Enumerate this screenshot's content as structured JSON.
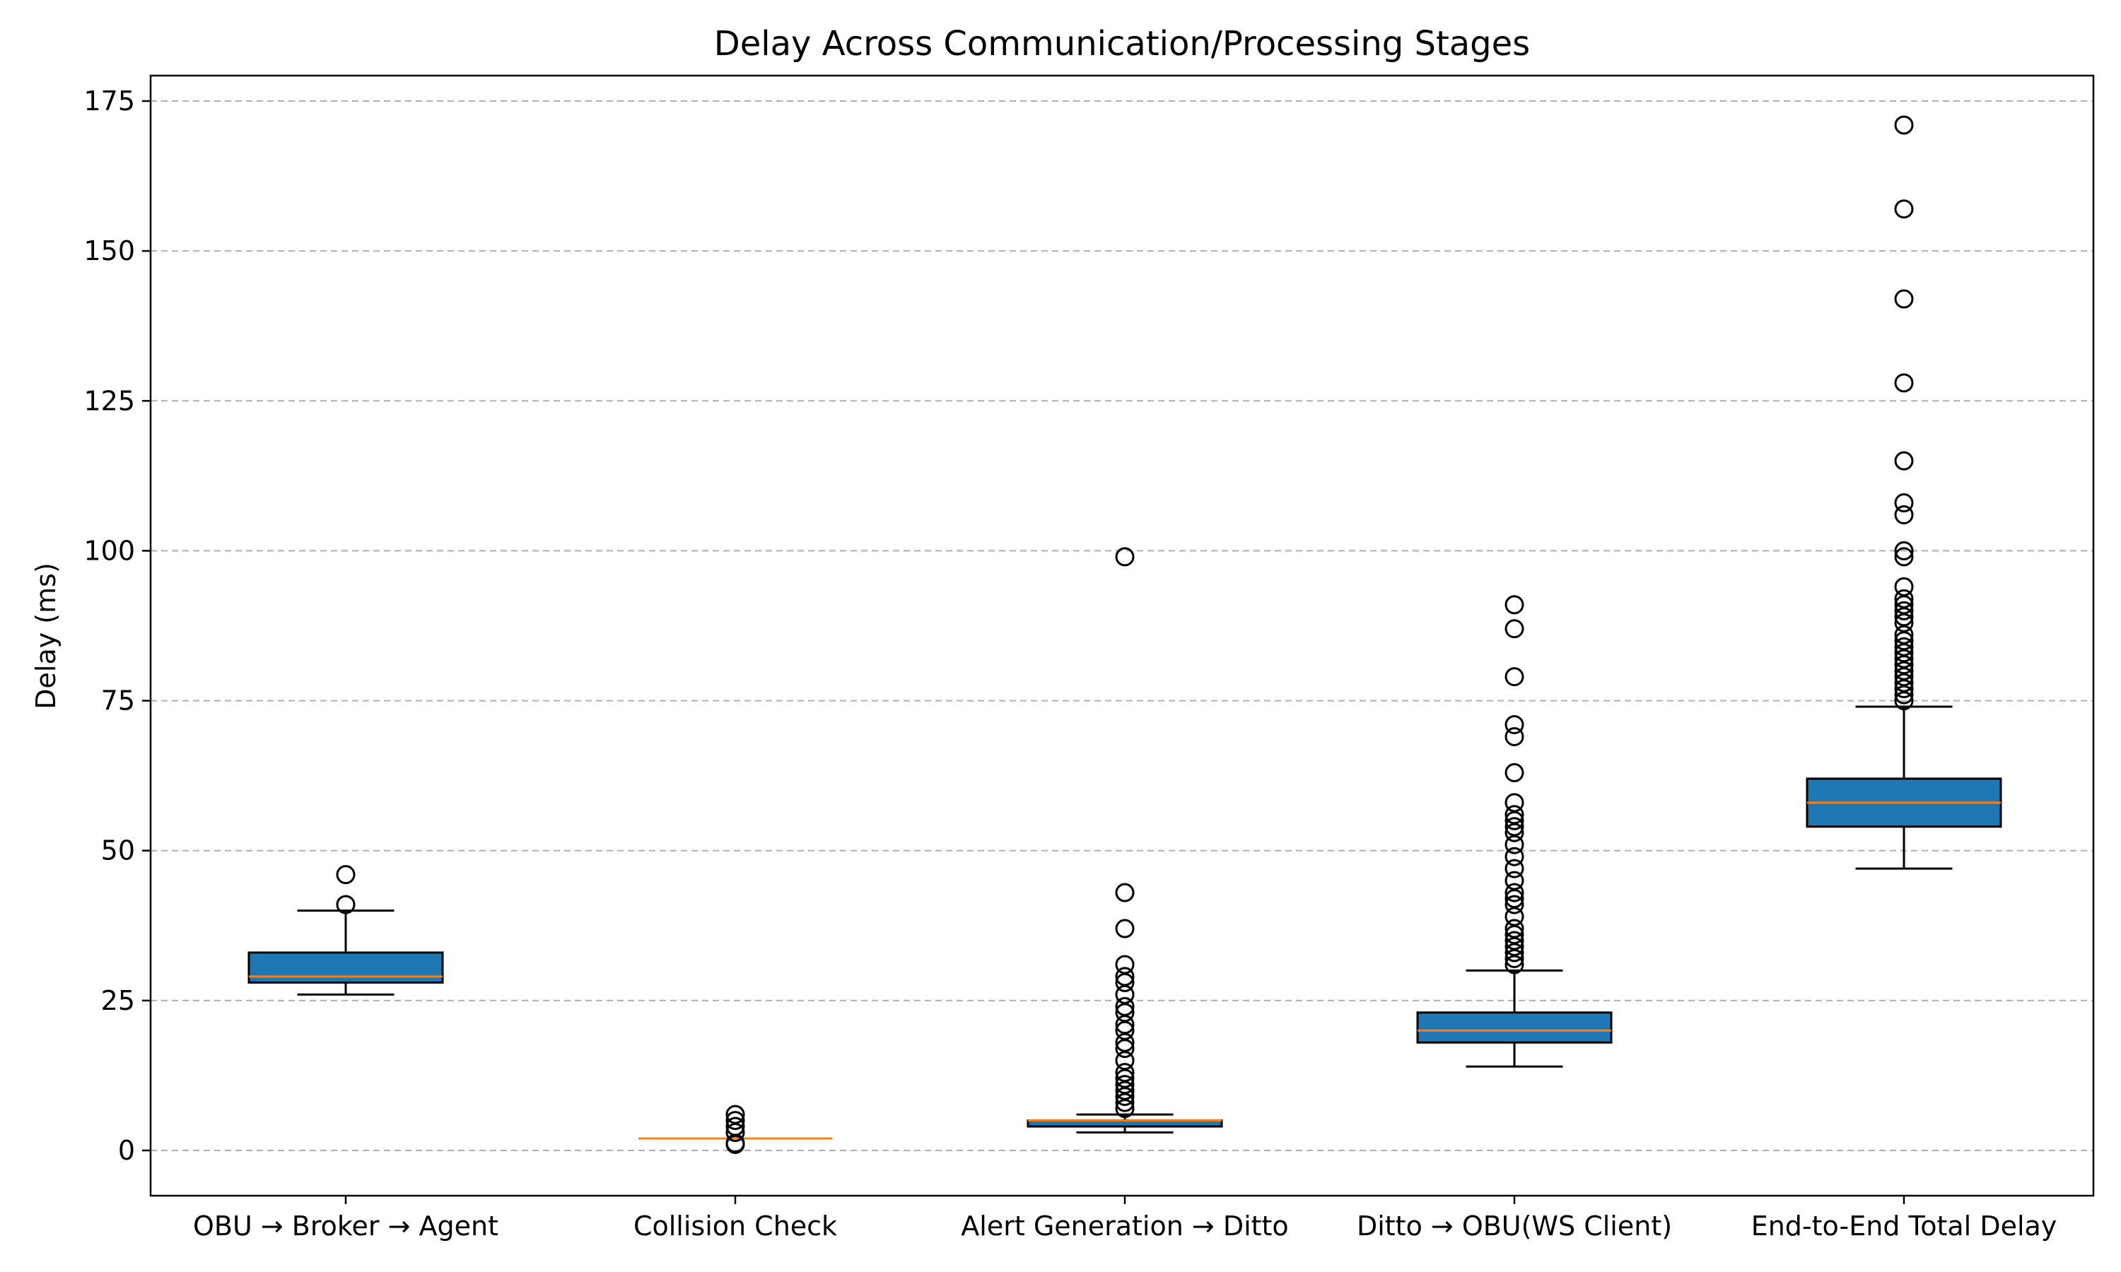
{
  "chart_data": {
    "type": "box",
    "title": "Delay Across Communication/Processing Stages",
    "xlabel": "",
    "ylabel": "Delay (ms)",
    "ylim": [
      -7.5,
      180
    ],
    "yticks": [
      0,
      25,
      50,
      75,
      100,
      125,
      150,
      175
    ],
    "grid": "y-dashed",
    "colors": {
      "box": "#1f77b4",
      "median": "#ff7f0e",
      "line": "#000000",
      "grid": "#b0b0b0"
    },
    "categories": [
      "OBU → Broker → Agent",
      "Collision Check",
      "Alert Generation → Ditto",
      "Ditto → OBU(WS Client)",
      "End-to-End Total Delay"
    ],
    "boxes": [
      {
        "whisker_low": 26,
        "q1": 28,
        "median": 29,
        "q3": 33,
        "whisker_high": 40,
        "outliers": [
          41,
          46
        ]
      },
      {
        "whisker_low": 2,
        "q1": 2,
        "median": 2,
        "q3": 2,
        "whisker_high": 2,
        "outliers": [
          1,
          1.2,
          3,
          4,
          5,
          6
        ]
      },
      {
        "whisker_low": 3,
        "q1": 4,
        "median": 5,
        "q3": 5,
        "whisker_high": 6,
        "outliers": [
          7,
          8,
          9,
          10,
          11,
          12,
          13,
          15,
          17,
          18,
          20,
          21,
          23,
          24,
          26,
          28,
          29,
          31,
          37,
          43,
          99
        ]
      },
      {
        "whisker_low": 14,
        "q1": 18,
        "median": 20,
        "q3": 23,
        "whisker_high": 30,
        "outliers": [
          31,
          32,
          33,
          34,
          35,
          36,
          37,
          39,
          41,
          42,
          43,
          45,
          47,
          49,
          51,
          53,
          54,
          55,
          56,
          58,
          63,
          69,
          71,
          79,
          87,
          91
        ]
      },
      {
        "whisker_low": 47,
        "q1": 54,
        "median": 58,
        "q3": 62,
        "whisker_high": 74,
        "outliers": [
          75,
          76,
          77,
          78,
          79,
          80,
          81,
          82,
          83,
          84,
          85,
          86,
          88,
          89,
          90,
          91,
          92,
          94,
          99,
          100,
          106,
          108,
          115,
          128,
          142,
          157,
          171
        ]
      }
    ]
  }
}
